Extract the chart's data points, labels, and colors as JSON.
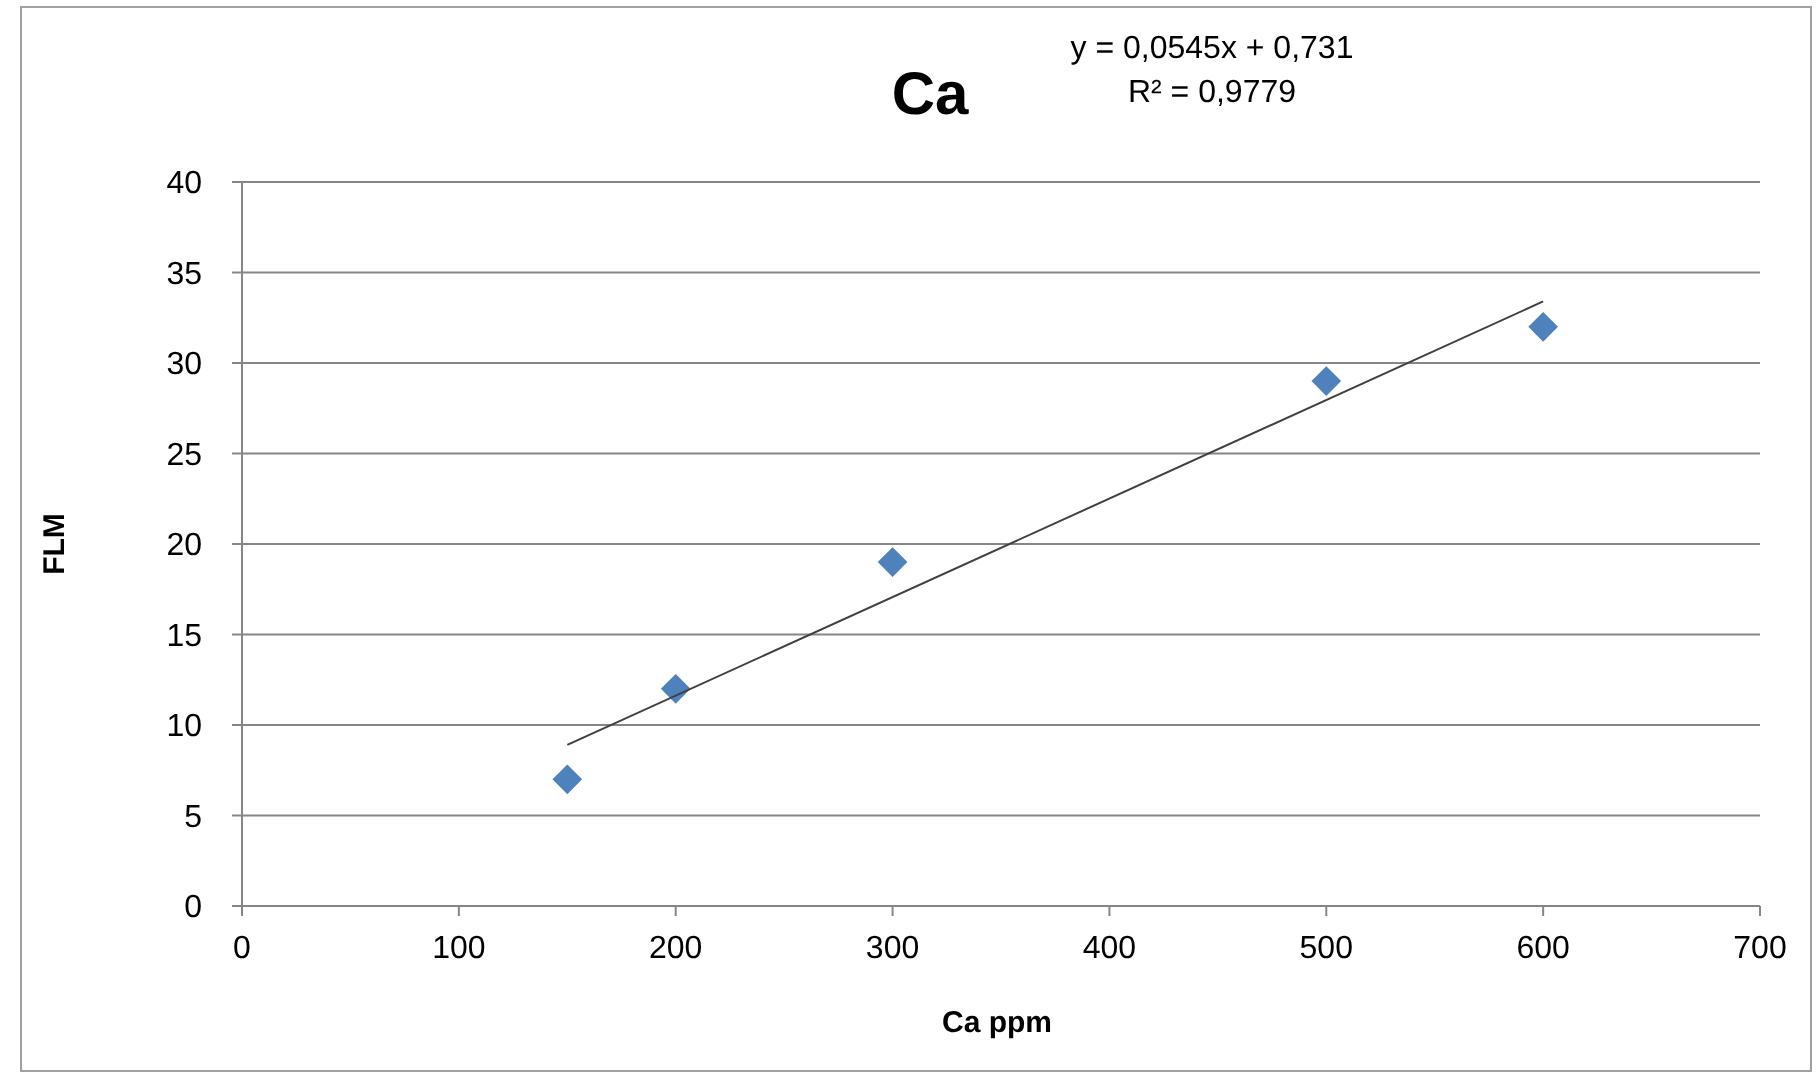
{
  "chart_data": {
    "type": "scatter",
    "title": "Ca",
    "xlabel": "Ca ppm",
    "ylabel": "FLM",
    "annotations": [
      "y = 0,0545x + 0,731",
      "R² = 0,9779"
    ],
    "xlim": [
      0,
      700
    ],
    "xticks": [
      0,
      100,
      200,
      300,
      400,
      500,
      600,
      700
    ],
    "ylim": [
      0,
      40
    ],
    "yticks": [
      0,
      5,
      10,
      15,
      20,
      25,
      30,
      35,
      40
    ],
    "grid": "y",
    "series": [
      {
        "x": [
          150,
          200,
          300,
          500,
          600
        ],
        "values": [
          7,
          12,
          19,
          29,
          32
        ],
        "color": "#4f81bd",
        "marker": "diamond"
      },
      {
        "type": "line",
        "x": [
          150,
          600
        ],
        "values": [
          8.9,
          33.4
        ],
        "color": "#404040",
        "marker": "none",
        "line_style": "solid"
      }
    ]
  }
}
